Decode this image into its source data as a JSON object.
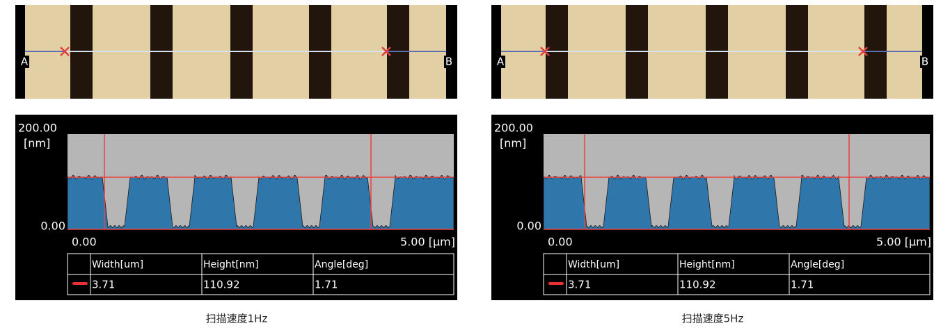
{
  "panels": [
    {
      "image": {
        "start_label": "A",
        "end_label": "B"
      },
      "plot": {
        "y_max_label": "200.00",
        "y_unit": "[nm]",
        "y_min_label": "0.00",
        "x_min_label": "0.00",
        "x_max_label": "5.00 [µm]"
      },
      "table": {
        "headers": [
          "Width[um]",
          "Height[nm]",
          "Angle[deg]"
        ],
        "rows": [
          [
            "3.71",
            "110.92",
            "1.71"
          ]
        ]
      },
      "caption": "扫描速度1Hz"
    },
    {
      "image": {
        "start_label": "A",
        "end_label": "B"
      },
      "plot": {
        "y_max_label": "200.00",
        "y_unit": "[nm]",
        "y_min_label": "0.00",
        "x_min_label": "0.00",
        "x_max_label": "5.00 [µm]"
      },
      "table": {
        "headers": [
          "Width[um]",
          "Height[nm]",
          "Angle[deg]"
        ],
        "rows": [
          [
            "3.71",
            "110.92",
            "1.71"
          ]
        ]
      },
      "caption": "扫描速度5Hz"
    }
  ]
}
